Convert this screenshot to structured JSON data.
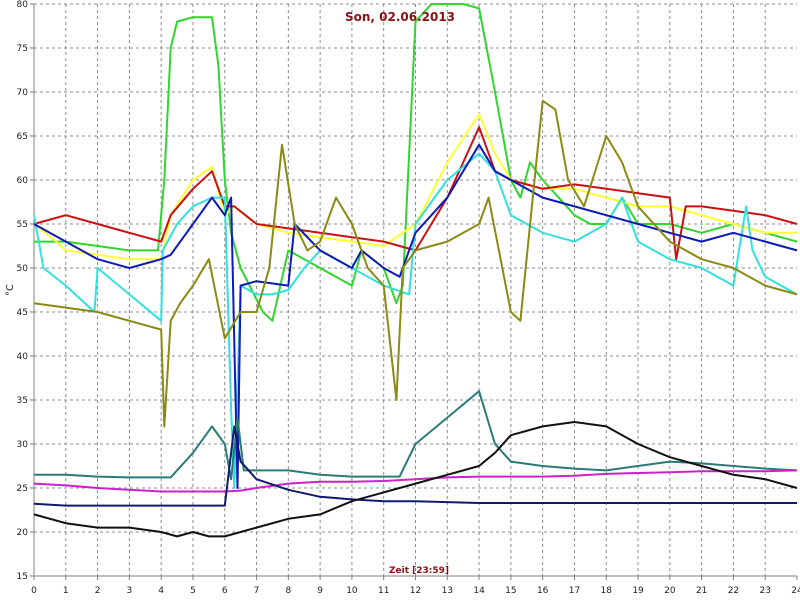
{
  "chart_data": {
    "type": "line",
    "title": "Son, 02.06.2013",
    "xlabel": "Zeit [23:59]",
    "ylabel": "°C",
    "xlim": [
      0,
      24
    ],
    "ylim": [
      15,
      80
    ],
    "grid": true,
    "x_ticks": [
      0,
      1,
      2,
      3,
      4,
      5,
      6,
      7,
      8,
      9,
      10,
      11,
      12,
      13,
      14,
      15,
      16,
      17,
      18,
      19,
      20,
      21,
      22,
      23,
      24
    ],
    "y_ticks": [
      15,
      20,
      25,
      30,
      35,
      40,
      45,
      50,
      55,
      60,
      65,
      70,
      75,
      80
    ],
    "series": [
      {
        "color": "#2ed62e",
        "x": [
          0,
          1,
          2,
          3,
          3.9,
          4.1,
          4.3,
          4.5,
          5.0,
          5.6,
          5.8,
          6.0,
          6.2,
          6.5,
          7.2,
          7.5,
          8.0,
          9.0,
          10.0,
          10.3,
          11.0,
          11.4,
          11.6,
          12.0,
          12.5,
          13.5,
          14.0,
          14.5,
          15.0,
          15.3,
          15.6,
          16.0,
          16.5,
          17.0,
          17.5,
          18.0,
          18.5,
          19.0,
          20.0,
          21.0,
          22.0,
          23.0,
          24.0
        ],
        "y": [
          53,
          53,
          52.5,
          52,
          52,
          60,
          75,
          78,
          78.5,
          78.5,
          73,
          60,
          54,
          50,
          45,
          44,
          52,
          50,
          48,
          52,
          50,
          46,
          48,
          78,
          80,
          80,
          79.5,
          70,
          60,
          58,
          62,
          60,
          58,
          56,
          55,
          55,
          58,
          55,
          55,
          54,
          55,
          54,
          53
        ]
      },
      {
        "color": "#ffff33",
        "x": [
          0,
          0.7,
          1,
          2,
          3,
          4,
          4.3,
          5.0,
          5.6,
          6.0,
          6.3,
          7,
          8,
          9,
          10,
          11,
          12,
          13,
          14,
          14.5,
          15,
          16,
          17,
          18,
          19,
          20,
          21,
          22,
          23,
          24
        ],
        "y": [
          55,
          53,
          52,
          51.5,
          51,
          51,
          56,
          60,
          61.5,
          56,
          57,
          55,
          54,
          53.5,
          53,
          52.5,
          55,
          62,
          67.5,
          63,
          60,
          59,
          59,
          58,
          57,
          57,
          56,
          55,
          54,
          54
        ]
      },
      {
        "color": "#cc1010",
        "x": [
          0,
          1,
          2,
          3,
          4,
          4.3,
          5.0,
          5.6,
          6.0,
          6.3,
          7,
          8,
          9,
          10,
          11,
          12,
          13,
          14,
          14.5,
          15,
          16,
          17,
          18,
          19,
          20,
          20.2,
          20.5,
          21,
          22,
          23,
          24
        ],
        "y": [
          55,
          56,
          55,
          54,
          53,
          56,
          59,
          61,
          57,
          57,
          55,
          54.5,
          54,
          53.5,
          53,
          52,
          58,
          66,
          61,
          60,
          59,
          59.5,
          59,
          58.5,
          58,
          51,
          57,
          57,
          56.5,
          56,
          55
        ]
      },
      {
        "color": "#33e0e0",
        "x": [
          0,
          0.3,
          1,
          1.9,
          2.0,
          3,
          4,
          4.05,
          4.5,
          5,
          5.6,
          6.0,
          6.2,
          6.3,
          6.5,
          7,
          7.5,
          8,
          8.5,
          9,
          10,
          11,
          11.8,
          12,
          13,
          14,
          14.5,
          15,
          16,
          17,
          18,
          18.5,
          19,
          20,
          21,
          22,
          22.4,
          22.6,
          23,
          24
        ],
        "y": [
          56,
          50,
          48,
          45,
          50,
          47,
          44,
          52,
          55,
          57,
          58,
          58,
          34,
          25,
          48,
          47,
          47,
          47.5,
          50,
          52,
          50,
          48,
          47,
          55,
          60,
          63,
          61,
          56,
          54,
          53,
          55,
          58,
          53,
          51,
          50,
          48,
          57,
          52,
          49,
          47
        ]
      },
      {
        "color": "#0d1ab5",
        "x": [
          0,
          1,
          2,
          3,
          4,
          4.3,
          5,
          5.6,
          6.0,
          6.2,
          6.4,
          6.5,
          7,
          8,
          8.2,
          9,
          10,
          10.3,
          11,
          11.5,
          12,
          13,
          14,
          14.5,
          15,
          16,
          17,
          18,
          19,
          20,
          21,
          22,
          23,
          24
        ],
        "y": [
          55,
          53,
          51,
          50,
          51,
          51.5,
          55,
          58,
          56,
          58,
          25,
          48,
          48.5,
          48,
          55,
          52,
          50,
          52,
          50,
          49,
          54,
          58,
          64,
          61,
          60,
          58,
          57,
          56,
          55,
          54,
          53,
          54,
          53,
          52
        ]
      },
      {
        "color": "#8a8a14",
        "x": [
          0,
          1,
          2,
          3,
          4,
          4.1,
          4.3,
          4.6,
          5.0,
          5.5,
          6.0,
          6.5,
          7.0,
          7.4,
          7.8,
          8.2,
          8.6,
          9.0,
          9.5,
          10.0,
          10.5,
          11.0,
          11.4,
          11.6,
          12.0,
          13.0,
          14.0,
          14.3,
          15.0,
          15.3,
          15.8,
          16.0,
          16.4,
          16.8,
          17.3,
          18.0,
          18.5,
          19.0,
          20.0,
          21.0,
          22.0,
          23.0,
          24.0
        ],
        "y": [
          46,
          45.5,
          45,
          44,
          43,
          32,
          44,
          46,
          48,
          51,
          42,
          45,
          45,
          50,
          64,
          55,
          52,
          53,
          58,
          55,
          50,
          48,
          35,
          50,
          52,
          53,
          55,
          58,
          45,
          44,
          62,
          69,
          68,
          60,
          57,
          65,
          62,
          57,
          53,
          51,
          50,
          48,
          47
        ]
      },
      {
        "color": "#2a7a7a",
        "x": [
          0,
          1,
          2,
          3,
          4,
          4.3,
          5,
          5.6,
          6,
          6.2,
          6.4,
          6.6,
          7,
          8,
          9,
          10,
          11,
          11.5,
          12,
          13,
          14,
          14.5,
          15,
          16,
          17,
          18,
          19,
          20,
          21,
          22,
          23,
          24
        ],
        "y": [
          26.5,
          26.5,
          26.3,
          26.2,
          26.2,
          26.2,
          29,
          32,
          30,
          26,
          33,
          27,
          27,
          27,
          26.5,
          26.3,
          26.3,
          26.3,
          30,
          33,
          36,
          30,
          28,
          27.5,
          27.2,
          27,
          27.5,
          28,
          27.8,
          27.5,
          27.2,
          27
        ]
      },
      {
        "color": "#cc22cc",
        "x": [
          0,
          1,
          2,
          3,
          4,
          5,
          6,
          6.5,
          7,
          8,
          9,
          10,
          11,
          12,
          13,
          14,
          15,
          16,
          17,
          18,
          19,
          20,
          21,
          22,
          23,
          24
        ],
        "y": [
          25.5,
          25.3,
          25,
          24.8,
          24.6,
          24.6,
          24.6,
          24.7,
          25,
          25.5,
          25.7,
          25.7,
          25.8,
          26,
          26.2,
          26.3,
          26.3,
          26.3,
          26.4,
          26.6,
          26.7,
          26.8,
          26.9,
          26.9,
          26.9,
          27
        ]
      },
      {
        "color": "#0d1a6e",
        "x": [
          0,
          1,
          2,
          3,
          4,
          5,
          6,
          6.3,
          6.5,
          7,
          8,
          9,
          10,
          11,
          12,
          13,
          14,
          15,
          16,
          17,
          18,
          19,
          20,
          21,
          22,
          23,
          24
        ],
        "y": [
          23.2,
          23,
          23,
          23,
          23,
          23,
          23,
          32,
          28,
          26,
          24.8,
          24,
          23.7,
          23.5,
          23.5,
          23.4,
          23.3,
          23.3,
          23.3,
          23.3,
          23.3,
          23.3,
          23.3,
          23.3,
          23.3,
          23.3,
          23.3
        ]
      },
      {
        "color": "#111111",
        "x": [
          0,
          1,
          2,
          3,
          4,
          4.5,
          5,
          5.5,
          6,
          6.5,
          7,
          8,
          9,
          10,
          11,
          12,
          13,
          14,
          14.5,
          15,
          16,
          17,
          18,
          19,
          20,
          21,
          22,
          23,
          24
        ],
        "y": [
          22,
          21,
          20.5,
          20.5,
          20,
          19.5,
          20,
          19.5,
          19.5,
          20,
          20.5,
          21.5,
          22,
          23.5,
          24.5,
          25.5,
          26.5,
          27.5,
          29,
          31,
          32,
          32.5,
          32,
          30,
          28.5,
          27.5,
          26.5,
          26,
          25
        ]
      }
    ]
  }
}
